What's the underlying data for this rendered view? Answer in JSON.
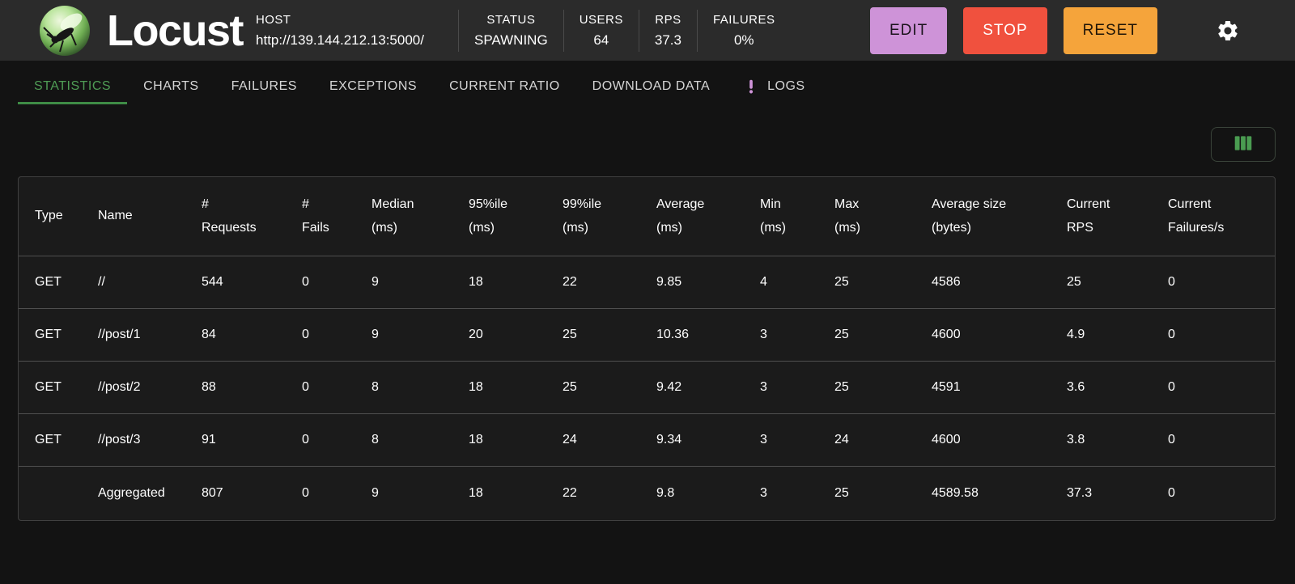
{
  "header": {
    "brand": "Locust",
    "host_label": "HOST",
    "host_url": "http://139.144.212.13:5000/",
    "stats": [
      {
        "label": "STATUS",
        "value": "SPAWNING"
      },
      {
        "label": "USERS",
        "value": "64"
      },
      {
        "label": "RPS",
        "value": "37.3"
      },
      {
        "label": "FAILURES",
        "value": "0%"
      }
    ],
    "buttons": [
      {
        "label": "EDIT"
      },
      {
        "label": "STOP"
      },
      {
        "label": "RESET"
      }
    ],
    "settings_icon": "gear-icon"
  },
  "tabs": {
    "active": "STATISTICS",
    "items": [
      {
        "label": "STATISTICS"
      },
      {
        "label": "CHARTS"
      },
      {
        "label": "FAILURES"
      },
      {
        "label": "EXCEPTIONS"
      },
      {
        "label": "CURRENT RATIO"
      },
      {
        "label": "DOWNLOAD DATA"
      },
      {
        "label": "LOGS",
        "icon": "exclamation-icon"
      }
    ]
  },
  "toolbar": {
    "columns_button_icon": "columns-icon"
  },
  "table": {
    "headers": [
      "Type",
      "Name",
      "#\nRequests",
      "#\nFails",
      "Median\n(ms)",
      "95%ile\n(ms)",
      "99%ile\n(ms)",
      "Average\n(ms)",
      "Min\n(ms)",
      "Max\n(ms)",
      "Average size\n(bytes)",
      "Current\nRPS",
      "Current\nFailures/s"
    ],
    "rows": [
      [
        "GET",
        "//",
        "544",
        "0",
        "9",
        "18",
        "22",
        "9.85",
        "4",
        "25",
        "4586",
        "25",
        "0"
      ],
      [
        "GET",
        "//post/1",
        "84",
        "0",
        "9",
        "20",
        "25",
        "10.36",
        "3",
        "25",
        "4600",
        "4.9",
        "0"
      ],
      [
        "GET",
        "//post/2",
        "88",
        "0",
        "8",
        "18",
        "25",
        "9.42",
        "3",
        "25",
        "4591",
        "3.6",
        "0"
      ],
      [
        "GET",
        "//post/3",
        "91",
        "0",
        "8",
        "18",
        "24",
        "9.34",
        "3",
        "24",
        "4600",
        "3.8",
        "0"
      ],
      [
        "",
        "Aggregated",
        "807",
        "0",
        "9",
        "18",
        "22",
        "9.8",
        "3",
        "25",
        "4589.58",
        "37.3",
        "0"
      ]
    ]
  },
  "colors": {
    "accent_green": "#4f9c55",
    "edit_button": "#ce93d8",
    "stop_button": "#f0513e",
    "reset_button": "#f5a43b",
    "logs_icon": "#ce93d8",
    "header_bg": "#2b2b2b",
    "page_bg": "#131313",
    "card_bg": "#1b1b1b"
  }
}
